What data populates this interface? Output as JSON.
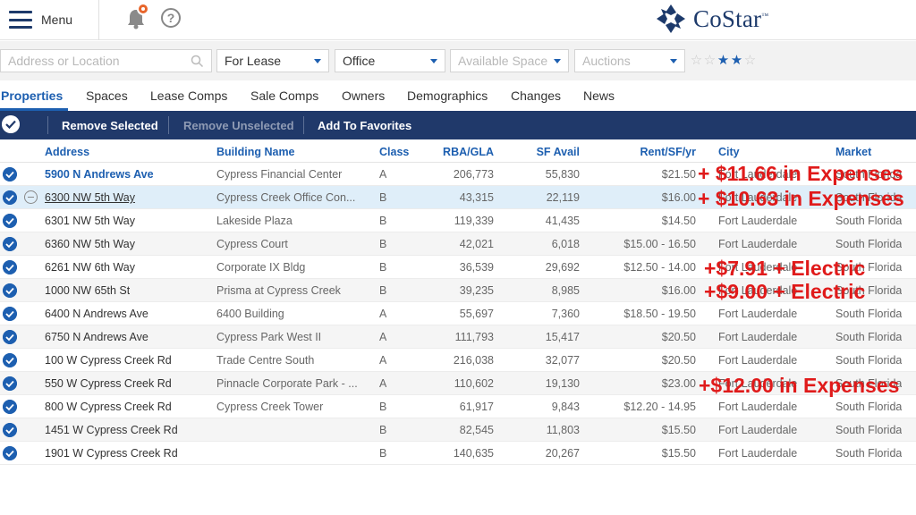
{
  "header": {
    "menu_label": "Menu",
    "help_label": "?",
    "logo_text": "CoStar",
    "logo_tm": "™"
  },
  "filters": {
    "location_placeholder": "Address or Location",
    "lease_type": "For Lease",
    "property_type": "Office",
    "available_space_placeholder": "Available Space",
    "auctions_placeholder": "Auctions",
    "star_rating": {
      "filled": 2,
      "total": 5,
      "filled_glyph": "★",
      "empty_glyph": "☆"
    }
  },
  "tabs": [
    {
      "label": "Properties"
    },
    {
      "label": "Spaces"
    },
    {
      "label": "Lease Comps"
    },
    {
      "label": "Sale Comps"
    },
    {
      "label": "Owners"
    },
    {
      "label": "Demographics"
    },
    {
      "label": "Changes"
    },
    {
      "label": "News"
    }
  ],
  "actions": {
    "remove_selected": "Remove Selected",
    "remove_unselected": "Remove Unselected",
    "add_to_favorites": "Add To Favorites"
  },
  "columns": {
    "address": "Address",
    "building_name": "Building Name",
    "class": "Class",
    "rba": "RBA/GLA",
    "sf_avail": "SF Avail",
    "rent": "Rent/SF/yr",
    "city": "City",
    "market": "Market"
  },
  "rows": [
    {
      "address": "5900 N Andrews Ave",
      "building": "Cypress Financial Center",
      "class": "A",
      "rba": "206,773",
      "sf": "55,830",
      "rent": "$21.50",
      "city": "Fort Lauderdale",
      "market": "South Florida"
    },
    {
      "address": "6300 NW 5th Way",
      "building": "Cypress Creek Office Con...",
      "class": "B",
      "rba": "43,315",
      "sf": "22,119",
      "rent": "$16.00",
      "city": "Fort Lauderdale",
      "market": "South Florida"
    },
    {
      "address": "6301 NW 5th Way",
      "building": "Lakeside Plaza",
      "class": "B",
      "rba": "119,339",
      "sf": "41,435",
      "rent": "$14.50",
      "city": "Fort Lauderdale",
      "market": "South Florida"
    },
    {
      "address": "6360 NW 5th Way",
      "building": "Cypress Court",
      "class": "B",
      "rba": "42,021",
      "sf": "6,018",
      "rent": "$15.00 - 16.50",
      "city": "Fort Lauderdale",
      "market": "South Florida"
    },
    {
      "address": "6261 NW 6th Way",
      "building": "Corporate IX Bldg",
      "class": "B",
      "rba": "36,539",
      "sf": "29,692",
      "rent": "$12.50 - 14.00",
      "city": "Fort Lauderdale",
      "market": "South Florida"
    },
    {
      "address": "1000 NW 65th St",
      "building": "Prisma at Cypress Creek",
      "class": "B",
      "rba": "39,235",
      "sf": "8,985",
      "rent": "$16.00",
      "city": "Fort Lauderdale",
      "market": "South Florida"
    },
    {
      "address": "6400 N Andrews Ave",
      "building": "6400 Building",
      "class": "A",
      "rba": "55,697",
      "sf": "7,360",
      "rent": "$18.50 - 19.50",
      "city": "Fort Lauderdale",
      "market": "South Florida"
    },
    {
      "address": "6750 N Andrews Ave",
      "building": "Cypress Park West II",
      "class": "A",
      "rba": "111,793",
      "sf": "15,417",
      "rent": "$20.50",
      "city": "Fort Lauderdale",
      "market": "South Florida"
    },
    {
      "address": "100 W Cypress Creek Rd",
      "building": "Trade Centre South",
      "class": "A",
      "rba": "216,038",
      "sf": "32,077",
      "rent": "$20.50",
      "city": "Fort Lauderdale",
      "market": "South Florida"
    },
    {
      "address": "550 W Cypress Creek Rd",
      "building": "Pinnacle Corporate Park - ...",
      "class": "A",
      "rba": "110,602",
      "sf": "19,130",
      "rent": "$23.00",
      "city": "Fort Lauderdale",
      "market": "South Florida"
    },
    {
      "address": "800 W Cypress Creek Rd",
      "building": "Cypress Creek Tower",
      "class": "B",
      "rba": "61,917",
      "sf": "9,843",
      "rent": "$12.20 - 14.95",
      "city": "Fort Lauderdale",
      "market": "South Florida"
    },
    {
      "address": "1451 W Cypress Creek Rd",
      "building": "",
      "class": "B",
      "rba": "82,545",
      "sf": "11,803",
      "rent": "$15.50",
      "city": "Fort Lauderdale",
      "market": "South Florida"
    },
    {
      "address": "1901 W Cypress Creek Rd",
      "building": "",
      "class": "B",
      "rba": "140,635",
      "sf": "20,267",
      "rent": "$15.50",
      "city": "Fort Lauderdale",
      "market": "South Florida"
    }
  ],
  "annotations": [
    "+ $11.66 in Expenses",
    "+ $10.63 in Expenses",
    "+$7.91 + Electric",
    "+$9.00 + Electric",
    "+$12.00 in Expenses"
  ],
  "colors": {
    "brand_navy": "#20396a",
    "link_blue": "#1d5fb0",
    "annotation_red": "#e01a1a",
    "notification_orange": "#e8652b"
  }
}
